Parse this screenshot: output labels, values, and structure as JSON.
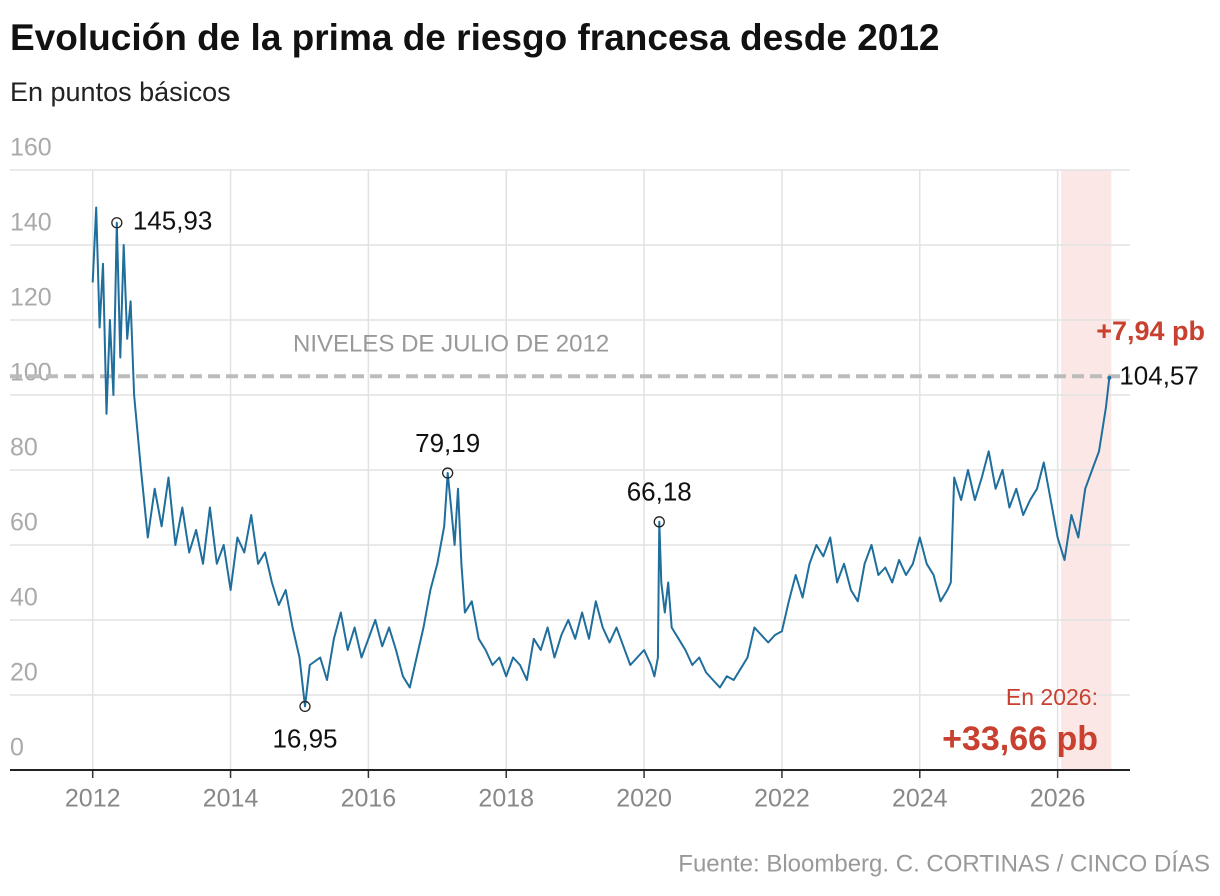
{
  "chart_data": {
    "type": "line",
    "title": "Evolución de la prima de riesgo francesa desde 2012",
    "subtitle": "En puntos básicos",
    "source": "Fuente: Bloomberg. C. CORTINAS / CINCO DÍAS",
    "xlim": [
      2010.8,
      2027.05
    ],
    "xticks": [
      2012,
      2014,
      2016,
      2018,
      2020,
      2022,
      2024,
      2026
    ],
    "ylim": [
      0,
      160
    ],
    "yticks": [
      0,
      20,
      40,
      60,
      80,
      100,
      120,
      140,
      160
    ],
    "grid": true,
    "reference_line": {
      "value": 105,
      "label": "NIVELES DE JULIO DE 2012",
      "color": "#bbbbbb"
    },
    "highlight_range": {
      "x": [
        2026.05,
        2026.78
      ],
      "color": "#fbe8e6"
    },
    "series": [
      {
        "name": "Prima de riesgo",
        "color": "#1f6e9c",
        "x": [
          2012.0,
          2012.05,
          2012.1,
          2012.15,
          2012.2,
          2012.25,
          2012.3,
          2012.35,
          2012.4,
          2012.45,
          2012.5,
          2012.55,
          2012.6,
          2012.7,
          2012.8,
          2012.9,
          2013.0,
          2013.1,
          2013.2,
          2013.3,
          2013.4,
          2013.5,
          2013.6,
          2013.7,
          2013.8,
          2013.9,
          2014.0,
          2014.1,
          2014.2,
          2014.3,
          2014.4,
          2014.5,
          2014.6,
          2014.7,
          2014.8,
          2014.9,
          2015.0,
          2015.08,
          2015.15,
          2015.3,
          2015.4,
          2015.5,
          2015.6,
          2015.7,
          2015.8,
          2015.9,
          2016.0,
          2016.1,
          2016.2,
          2016.3,
          2016.4,
          2016.5,
          2016.6,
          2016.7,
          2016.8,
          2016.9,
          2017.0,
          2017.1,
          2017.15,
          2017.2,
          2017.25,
          2017.3,
          2017.35,
          2017.4,
          2017.5,
          2017.6,
          2017.7,
          2017.8,
          2017.9,
          2018.0,
          2018.1,
          2018.2,
          2018.3,
          2018.4,
          2018.5,
          2018.6,
          2018.7,
          2018.8,
          2018.9,
          2019.0,
          2019.1,
          2019.2,
          2019.3,
          2019.4,
          2019.5,
          2019.6,
          2019.7,
          2019.8,
          2019.9,
          2020.0,
          2020.1,
          2020.15,
          2020.2,
          2020.22,
          2020.25,
          2020.3,
          2020.35,
          2020.4,
          2020.5,
          2020.6,
          2020.7,
          2020.8,
          2020.9,
          2021.0,
          2021.1,
          2021.2,
          2021.3,
          2021.4,
          2021.5,
          2021.6,
          2021.7,
          2021.8,
          2021.9,
          2022.0,
          2022.1,
          2022.2,
          2022.3,
          2022.4,
          2022.5,
          2022.6,
          2022.7,
          2022.8,
          2022.9,
          2023.0,
          2023.1,
          2023.2,
          2023.3,
          2023.4,
          2023.5,
          2023.6,
          2023.7,
          2023.8,
          2023.9,
          2024.0,
          2024.1,
          2024.2,
          2024.3,
          2024.4,
          2024.45,
          2024.5,
          2024.6,
          2024.7,
          2024.8,
          2024.9,
          2025.0,
          2025.1,
          2025.2,
          2025.3,
          2025.4,
          2025.5,
          2025.6,
          2025.7,
          2025.8,
          2025.9,
          2026.0,
          2026.1,
          2026.2,
          2026.3,
          2026.4,
          2026.5,
          2026.6,
          2026.7,
          2026.75
        ],
        "values": [
          130,
          150,
          118,
          135,
          95,
          120,
          100,
          145.93,
          110,
          140,
          115,
          125,
          100,
          80,
          62,
          75,
          65,
          78,
          60,
          70,
          58,
          64,
          55,
          70,
          55,
          60,
          48,
          62,
          58,
          68,
          55,
          58,
          50,
          44,
          48,
          38,
          30,
          16.95,
          28,
          30,
          24,
          35,
          42,
          32,
          38,
          30,
          35,
          40,
          33,
          38,
          32,
          25,
          22,
          30,
          38,
          48,
          55,
          65,
          79.19,
          70,
          60,
          75,
          55,
          42,
          45,
          35,
          32,
          28,
          30,
          25,
          30,
          28,
          24,
          35,
          32,
          38,
          30,
          36,
          40,
          35,
          42,
          35,
          45,
          38,
          34,
          38,
          33,
          28,
          30,
          32,
          28,
          25,
          30,
          66.18,
          50,
          42,
          50,
          38,
          35,
          32,
          28,
          30,
          26,
          24,
          22,
          25,
          24,
          27,
          30,
          38,
          36,
          34,
          36,
          37,
          45,
          52,
          46,
          55,
          60,
          57,
          62,
          50,
          55,
          48,
          45,
          55,
          60,
          52,
          54,
          50,
          56,
          52,
          55,
          62,
          55,
          52,
          45,
          48,
          50,
          78,
          72,
          80,
          72,
          78,
          85,
          75,
          80,
          70,
          75,
          68,
          72,
          75,
          82,
          72,
          62,
          56,
          68,
          62,
          75,
          80,
          85,
          96.63,
          104.57
        ]
      }
    ],
    "labeled_points": {
      "x": [
        2012.35,
        2015.08,
        2017.15,
        2020.22,
        2026.75
      ],
      "values": [
        145.93,
        16.95,
        79.19,
        66.18,
        104.57
      ],
      "value_labels": [
        "145,93",
        "16,95",
        "79,19",
        "66,18",
        "104,57"
      ]
    },
    "annotations": {
      "change_recent": "+7,94 pb",
      "year_label": "En 2026:",
      "year_change": "+33,66 pb",
      "color": "#c8402f"
    }
  }
}
